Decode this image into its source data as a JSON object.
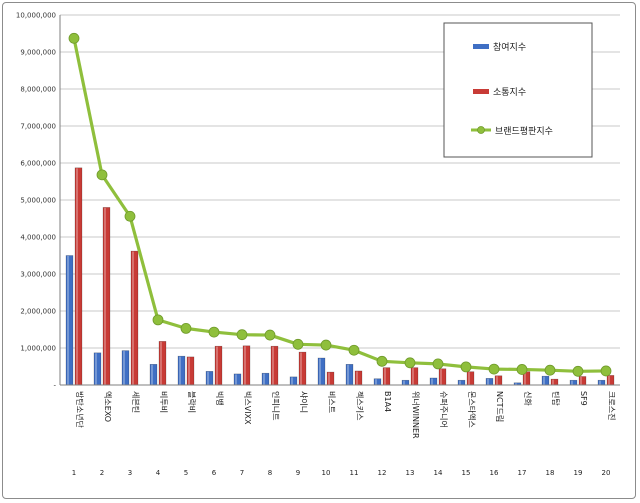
{
  "chart_data": {
    "type": "bar",
    "title": "",
    "xlabel": "",
    "ylabel": "",
    "ylim": [
      0,
      10000000
    ],
    "yticks": [
      "-",
      "1,000,000",
      "2,000,000",
      "3,000,000",
      "4,000,000",
      "5,000,000",
      "6,000,000",
      "7,000,000",
      "8,000,000",
      "9,000,000",
      "10,000,000"
    ],
    "categories": [
      "방탄소년단",
      "엑소EXO",
      "세븐틴",
      "비투비",
      "블락비",
      "빅뱅",
      "빅스VIXX",
      "인피니트",
      "샤이니",
      "비스트",
      "젝스키스",
      "B1A4",
      "위너WINNER",
      "슈퍼주니어",
      "몬스타엑스",
      "NCT드림",
      "신화",
      "틴탑",
      "SF9",
      "크로스진"
    ],
    "ranks": [
      "1",
      "2",
      "3",
      "4",
      "5",
      "6",
      "7",
      "8",
      "9",
      "10",
      "11",
      "12",
      "13",
      "14",
      "15",
      "16",
      "17",
      "18",
      "19",
      "20"
    ],
    "series": [
      {
        "name": "참여지수",
        "kind": "bar",
        "color": "#3f6fc4",
        "values": [
          3500000,
          870000,
          930000,
          560000,
          780000,
          370000,
          300000,
          320000,
          220000,
          730000,
          560000,
          170000,
          130000,
          190000,
          130000,
          180000,
          60000,
          240000,
          130000,
          130000
        ]
      },
      {
        "name": "소통지수",
        "kind": "bar",
        "color": "#c83b36",
        "values": [
          5870000,
          4800000,
          3620000,
          1180000,
          760000,
          1050000,
          1060000,
          1050000,
          890000,
          350000,
          380000,
          470000,
          470000,
          440000,
          360000,
          250000,
          360000,
          160000,
          230000,
          260000
        ]
      },
      {
        "name": "브랜드평판지수",
        "kind": "line",
        "color": "#8fbf3c",
        "values": [
          9370000,
          5680000,
          4560000,
          1760000,
          1530000,
          1430000,
          1360000,
          1350000,
          1100000,
          1080000,
          940000,
          640000,
          600000,
          570000,
          490000,
          430000,
          420000,
          400000,
          370000,
          380000
        ]
      }
    ],
    "legend": "top-right",
    "grid": true
  }
}
